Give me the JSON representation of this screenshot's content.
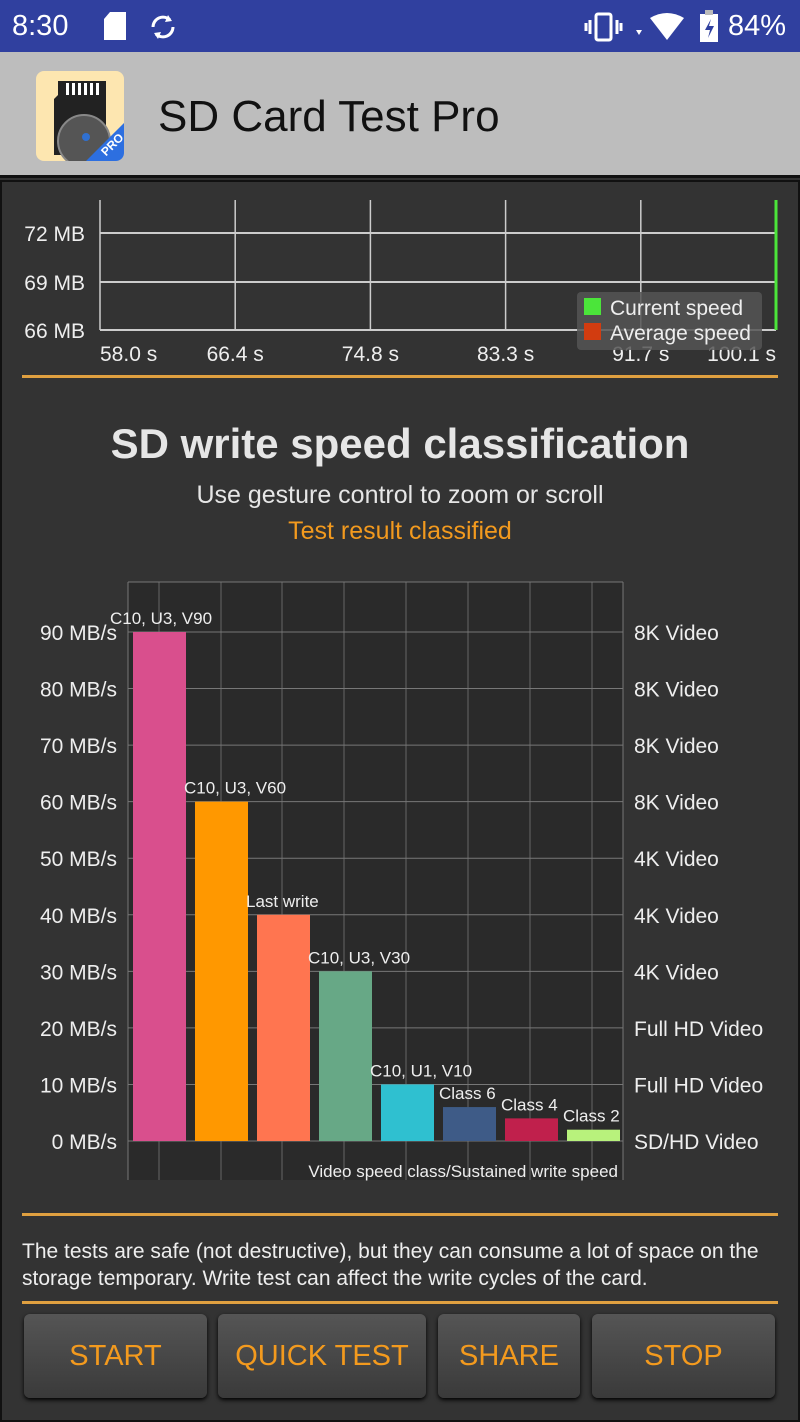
{
  "status_bar": {
    "time": "8:30",
    "battery": "84%",
    "icons": [
      "sd-card-icon",
      "sync-icon",
      "vibrate-icon",
      "wifi-icon",
      "battery-charging-icon"
    ]
  },
  "app_bar": {
    "title": "SD Card Test Pro",
    "icon_badge": "PRO"
  },
  "speed_chart": {
    "type": "line",
    "y_ticks": [
      "72 MB",
      "69 MB",
      "66 MB"
    ],
    "x_ticks": [
      "58.0 s",
      "66.4 s",
      "74.8 s",
      "83.3 s",
      "91.7 s",
      "100.1 s"
    ],
    "legend": [
      {
        "name": "Current speed",
        "color": "#4be53a"
      },
      {
        "name": "Average speed",
        "color": "#d23c10"
      }
    ],
    "legend_placement": "bottom-right"
  },
  "classification": {
    "title": "SD write speed classification",
    "hint": "Use gesture control to zoom or scroll",
    "result": "Test result classified",
    "result_color": "#f39a1e"
  },
  "chart_data": {
    "type": "bar",
    "categories": [
      "C10, U3, V90",
      "C10, U3, V60",
      "Last write",
      "C10, U3, V30",
      "C10, U1, V10",
      "Class 6",
      "Class 4",
      "Class 2"
    ],
    "values": [
      90,
      60,
      40,
      30,
      10,
      6,
      4,
      2
    ],
    "colors": [
      "#d94f8d",
      "#ff9800",
      "#ff7550",
      "#67a886",
      "#2fc0d0",
      "#3e5b87",
      "#c0204c",
      "#b8f27c"
    ],
    "y_ticks": [
      "0 MB/s",
      "10 MB/s",
      "20 MB/s",
      "30 MB/s",
      "40 MB/s",
      "50 MB/s",
      "60 MB/s",
      "70 MB/s",
      "80 MB/s",
      "90 MB/s"
    ],
    "y_right_labels": [
      "SD/HD Video",
      "Full HD Video",
      "Full HD Video",
      "4K Video",
      "4K Video",
      "4K Video",
      "8K Video",
      "8K Video",
      "8K Video",
      "8K Video"
    ],
    "xlabel": "Video speed class/Sustained write speed",
    "ylim": [
      0,
      90
    ],
    "grid": true
  },
  "notice": "The tests are safe (not destructive), but they can consume a lot of space on the storage temporary. Write test can affect the write cycles of the card.",
  "buttons": {
    "start": "START",
    "quick_test": "QUICK TEST",
    "share": "SHARE",
    "stop": "STOP"
  }
}
